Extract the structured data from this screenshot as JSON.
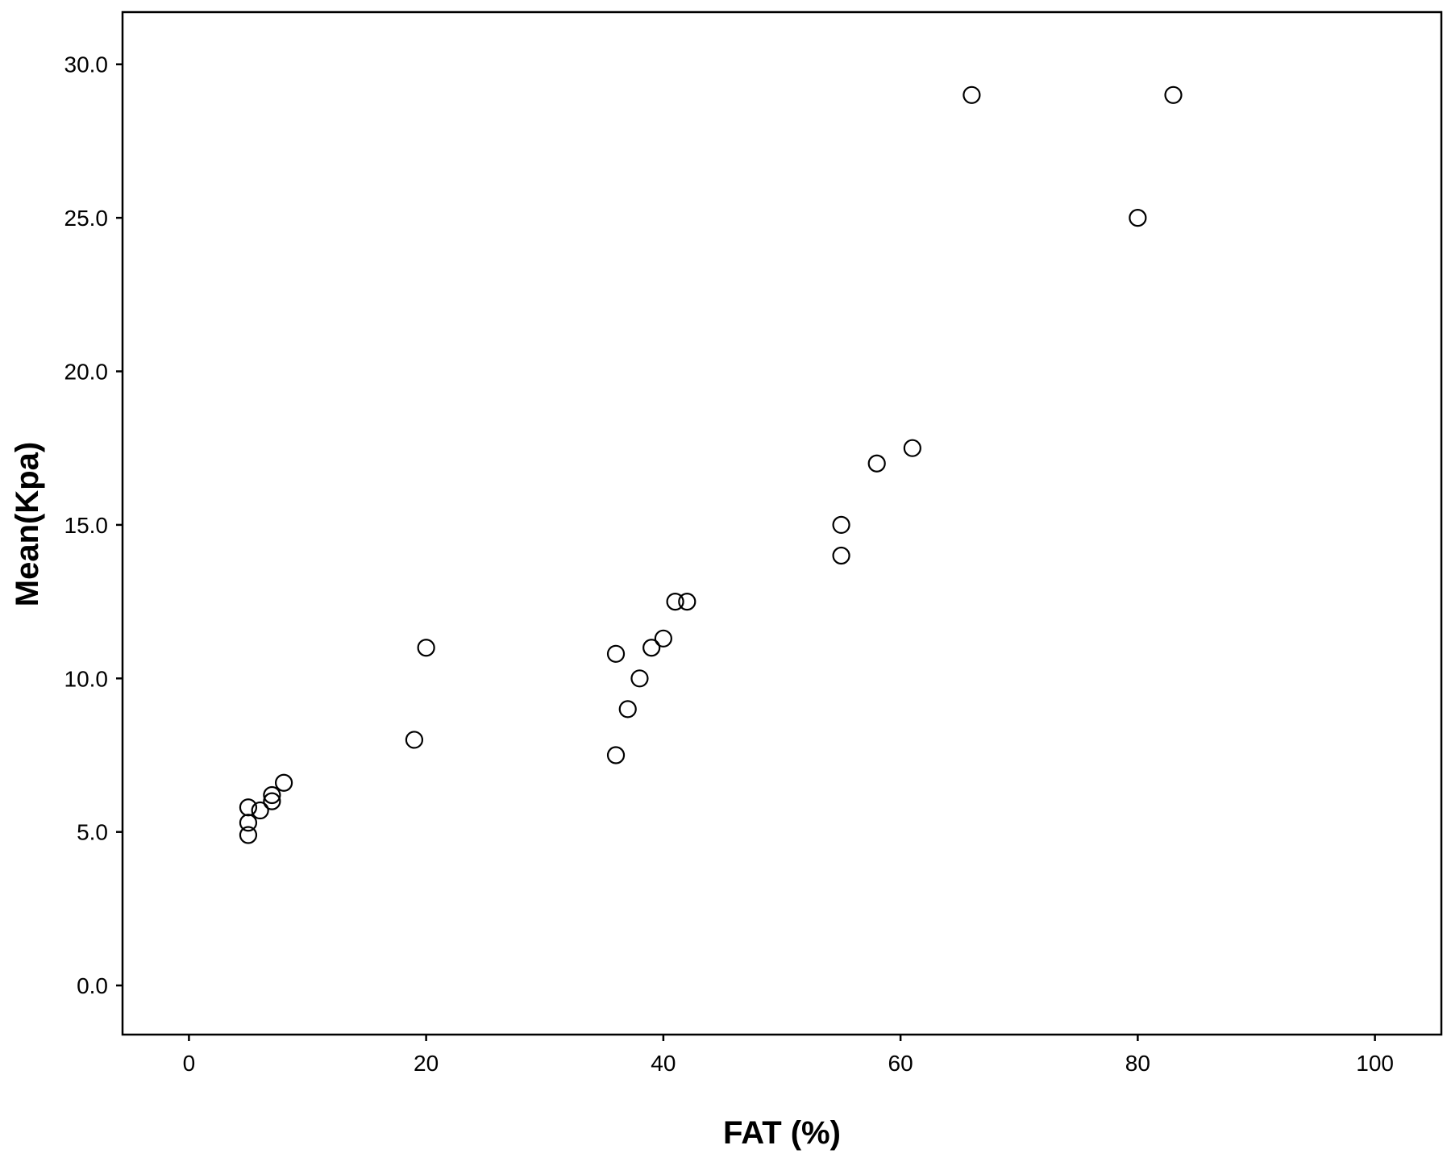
{
  "chart_data": {
    "type": "scatter",
    "title": "",
    "xlabel": "FAT (%)",
    "ylabel": "Mean(Kpa)",
    "xlim": [
      -5.6,
      105.6
    ],
    "ylim": [
      -1.6,
      31.7
    ],
    "x_ticks": [
      0,
      20,
      40,
      60,
      80,
      100
    ],
    "x_tick_labels": [
      "0",
      "20",
      "40",
      "60",
      "80",
      "100"
    ],
    "y_ticks": [
      0,
      5,
      10,
      15,
      20,
      25,
      30
    ],
    "y_tick_labels": [
      "0.0",
      "5.0",
      "10.0",
      "15.0",
      "20.0",
      "25.0",
      "30.0"
    ],
    "grid": false,
    "legend": "none",
    "marker": "open-circle",
    "colors": {
      "marker_stroke": "#000000",
      "axis": "#000000",
      "background": "#ffffff"
    },
    "points": [
      {
        "x": 5,
        "y": 4.9
      },
      {
        "x": 5,
        "y": 5.3
      },
      {
        "x": 5,
        "y": 5.8
      },
      {
        "x": 6,
        "y": 5.7
      },
      {
        "x": 7,
        "y": 6.0
      },
      {
        "x": 7,
        "y": 6.2
      },
      {
        "x": 8,
        "y": 6.6
      },
      {
        "x": 19,
        "y": 8.0
      },
      {
        "x": 20,
        "y": 11.0
      },
      {
        "x": 36,
        "y": 7.5
      },
      {
        "x": 36,
        "y": 10.8
      },
      {
        "x": 37,
        "y": 9.0
      },
      {
        "x": 38,
        "y": 10.0
      },
      {
        "x": 39,
        "y": 11.0
      },
      {
        "x": 40,
        "y": 11.3
      },
      {
        "x": 41,
        "y": 12.5
      },
      {
        "x": 42,
        "y": 12.5
      },
      {
        "x": 55,
        "y": 14.0
      },
      {
        "x": 55,
        "y": 15.0
      },
      {
        "x": 58,
        "y": 17.0
      },
      {
        "x": 61,
        "y": 17.5
      },
      {
        "x": 66,
        "y": 29.0
      },
      {
        "x": 80,
        "y": 25.0
      },
      {
        "x": 83,
        "y": 29.0
      }
    ]
  }
}
